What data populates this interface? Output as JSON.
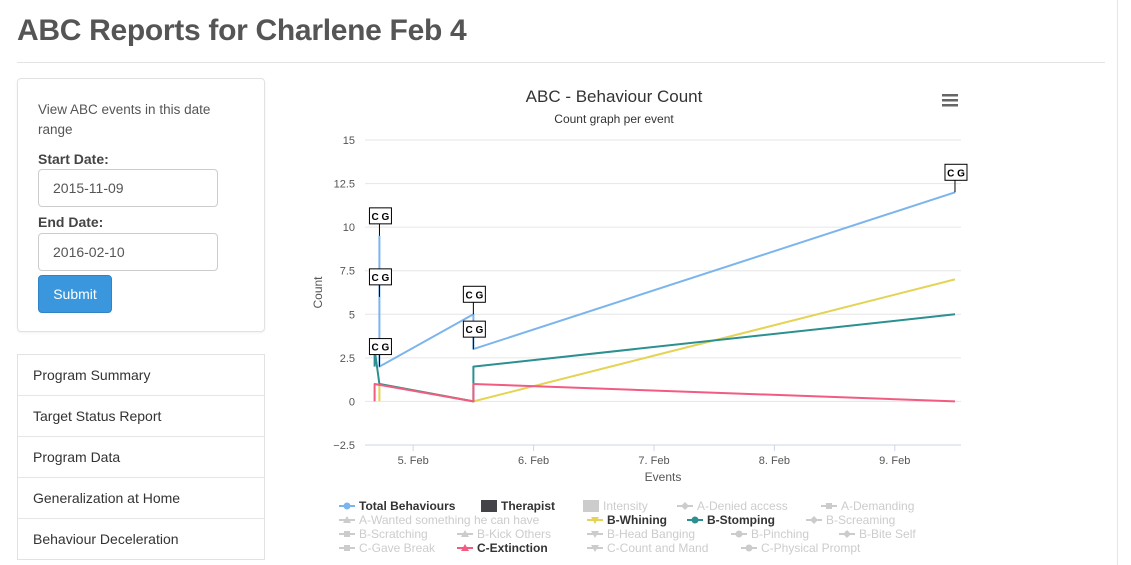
{
  "page": {
    "title": "ABC Reports for Charlene Feb 4"
  },
  "filter_panel": {
    "description": "View ABC events in this date range",
    "start_label": "Start Date:",
    "start_value": "2015-11-09",
    "end_label": "End Date:",
    "end_value": "2016-02-10",
    "submit_label": "Submit"
  },
  "menu": {
    "items": [
      {
        "label": "Program Summary"
      },
      {
        "label": "Target Status Report"
      },
      {
        "label": "Program Data"
      },
      {
        "label": "Generalization at Home"
      },
      {
        "label": "Behaviour Deceleration"
      }
    ]
  },
  "chart_data": {
    "type": "line",
    "title": "ABC - Behaviour Count",
    "subtitle": "Count graph per event",
    "xlabel": "Events",
    "ylabel": "Count",
    "ylim": [
      -2.5,
      15
    ],
    "xlim": [
      4.6,
      9.55
    ],
    "x_ticks": [
      5,
      6,
      7,
      8,
      9
    ],
    "x_tick_labels": [
      "5. Feb",
      "6. Feb",
      "7. Feb",
      "8. Feb",
      "9. Feb"
    ],
    "y_ticks": [
      -2.5,
      0,
      2.5,
      5,
      7.5,
      10,
      12.5,
      15
    ],
    "y_tick_labels": [
      "−2.5",
      "0",
      "2.5",
      "5",
      "7.5",
      "10",
      "12.5",
      "15"
    ],
    "grid": true,
    "legend_position": "bottom",
    "series": [
      {
        "name": "Total Behaviours",
        "color": "#7cb5ec",
        "visible": true,
        "marker": "circle",
        "points": [
          [
            4.72,
            9.5
          ],
          [
            4.72,
            6
          ],
          [
            4.72,
            2
          ],
          [
            5.5,
            5
          ],
          [
            5.5,
            3
          ],
          [
            9.5,
            12
          ]
        ]
      },
      {
        "name": "Therapist",
        "color": "#434348",
        "visible": true,
        "marker": "square",
        "points": []
      },
      {
        "name": "Intensity",
        "color": "#cccccc",
        "visible": false,
        "marker": "square",
        "points": []
      },
      {
        "name": "A-Denied access",
        "visible": false,
        "marker": "diamond",
        "points": []
      },
      {
        "name": "A-Demanding",
        "visible": false,
        "marker": "square",
        "points": []
      },
      {
        "name": "A-Wanted something he can have",
        "visible": false,
        "marker": "triangle",
        "points": []
      },
      {
        "name": "B-Whining",
        "color": "#e4d354",
        "visible": true,
        "marker": "triangle-down",
        "points": [
          [
            4.72,
            0
          ],
          [
            4.72,
            1
          ],
          [
            5.5,
            0
          ],
          [
            9.5,
            7
          ]
        ]
      },
      {
        "name": "B-Stomping",
        "color": "#2b908f",
        "visible": true,
        "marker": "circle",
        "points": [
          [
            4.68,
            2
          ],
          [
            4.68,
            3
          ],
          [
            4.72,
            1
          ],
          [
            5.5,
            0
          ],
          [
            5.5,
            2
          ],
          [
            9.5,
            5
          ]
        ]
      },
      {
        "name": "B-Screaming",
        "visible": false,
        "marker": "diamond",
        "points": []
      },
      {
        "name": "B-Scratching",
        "visible": false,
        "marker": "square",
        "points": []
      },
      {
        "name": "B-Kick Others",
        "visible": false,
        "marker": "triangle",
        "points": []
      },
      {
        "name": "B-Head Banging",
        "visible": false,
        "marker": "triangle-down",
        "points": []
      },
      {
        "name": "B-Pinching",
        "visible": false,
        "marker": "circle",
        "points": []
      },
      {
        "name": "B-Bite Self",
        "visible": false,
        "marker": "diamond",
        "points": []
      },
      {
        "name": "C-Gave Break",
        "visible": false,
        "marker": "square",
        "points": []
      },
      {
        "name": "C-Extinction",
        "color": "#f15c80",
        "visible": true,
        "marker": "triangle",
        "points": [
          [
            4.68,
            0
          ],
          [
            4.68,
            1
          ],
          [
            5.5,
            0
          ],
          [
            5.5,
            1
          ],
          [
            9.5,
            0
          ]
        ]
      },
      {
        "name": "C-Count and Mand",
        "visible": false,
        "marker": "triangle-down",
        "points": []
      },
      {
        "name": "C-Physical Prompt",
        "visible": false,
        "marker": "circle",
        "points": []
      }
    ],
    "flags": [
      {
        "text": "C G",
        "x": 4.72,
        "y": 9.5
      },
      {
        "text": "C G",
        "x": 4.72,
        "y": 6
      },
      {
        "text": "C G",
        "x": 4.72,
        "y": 2
      },
      {
        "text": "C G",
        "x": 5.5,
        "y": 5
      },
      {
        "text": "C G",
        "x": 5.5,
        "y": 3
      },
      {
        "text": "C G",
        "x": 9.5,
        "y": 12
      }
    ]
  }
}
